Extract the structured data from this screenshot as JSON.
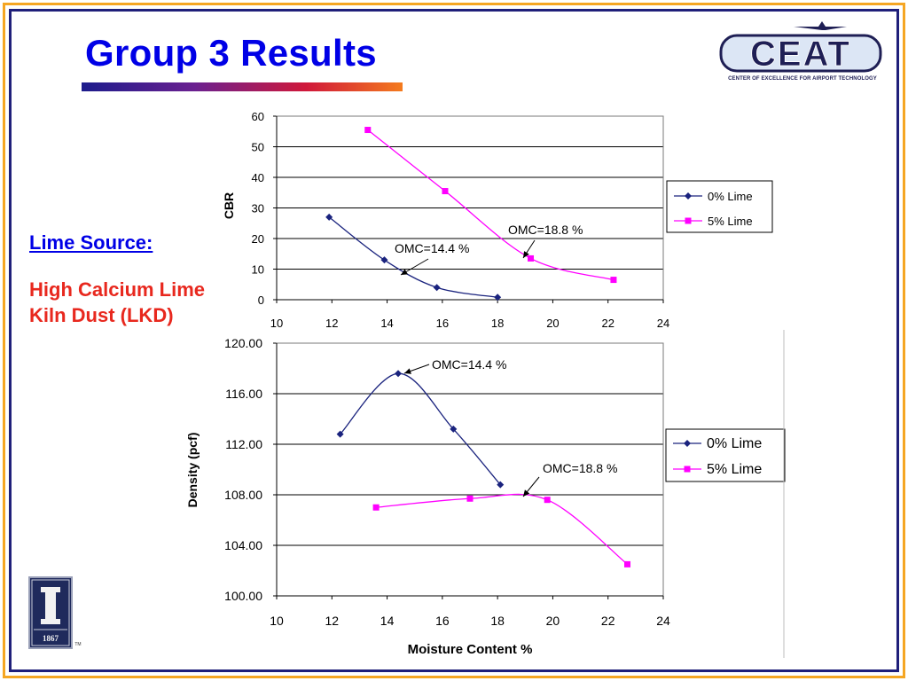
{
  "slide": {
    "title": "Group 3 Results",
    "side_heading": "Lime Source:",
    "side_text": "High Calcium Lime Kiln Dust (LKD)",
    "logo_text": "CEAT",
    "logo_caption": "CENTER OF EXCELLENCE FOR AIRPORT TECHNOLOGY",
    "seal_year": "1867",
    "seal_mark": "TM"
  },
  "colors": {
    "title": "#0000E6",
    "side_text": "#E8281E",
    "series_0": "#1A237E",
    "series_5": "#FF00FF",
    "frame_outer": "#F5A623",
    "frame_inner": "#1F1F7A"
  },
  "chart_data": [
    {
      "type": "line",
      "xlabel": "",
      "ylabel": "CBR",
      "xlim": [
        10,
        24
      ],
      "ylim": [
        0,
        60
      ],
      "xticks": [
        "10",
        "12",
        "14",
        "16",
        "18",
        "20",
        "22",
        "24"
      ],
      "yticks": [
        "0",
        "10",
        "20",
        "30",
        "40",
        "50",
        "60"
      ],
      "grid": "horizontal",
      "legend": "right",
      "series": [
        {
          "name": "0%  Lime",
          "marker": "diamond",
          "x": [
            11.9,
            13.9,
            15.8,
            18.0
          ],
          "y": [
            27,
            13,
            4,
            0.8
          ]
        },
        {
          "name": "5% Lime",
          "marker": "square",
          "x": [
            13.3,
            16.1,
            19.2,
            22.2
          ],
          "y": [
            55.5,
            35.5,
            13.5,
            6.5
          ]
        }
      ],
      "annotations": [
        {
          "text": "OMC=14.4 %",
          "x": 14.4
        },
        {
          "text": "OMC=18.8 %",
          "x": 18.8
        }
      ]
    },
    {
      "type": "line",
      "xlabel": "Moisture Content %",
      "ylabel": "Density (pcf)",
      "xlim": [
        10,
        24
      ],
      "ylim": [
        100,
        120
      ],
      "xticks": [
        "10",
        "12",
        "14",
        "16",
        "18",
        "20",
        "22",
        "24"
      ],
      "yticks": [
        "100.00",
        "104.00",
        "108.00",
        "112.00",
        "116.00",
        "120.00"
      ],
      "grid": "horizontal",
      "legend": "right",
      "series": [
        {
          "name": "0% Lime",
          "marker": "diamond",
          "x": [
            12.3,
            14.4,
            16.4,
            18.1
          ],
          "y": [
            112.8,
            117.6,
            113.2,
            108.8
          ]
        },
        {
          "name": "5% Lime",
          "marker": "square",
          "x": [
            13.6,
            17.0,
            19.8,
            22.7
          ],
          "y": [
            107.0,
            107.7,
            107.6,
            102.5
          ]
        }
      ],
      "annotations": [
        {
          "text": "OMC=14.4 %",
          "x": 14.4
        },
        {
          "text": "OMC=18.8 %",
          "x": 18.8
        }
      ]
    }
  ]
}
